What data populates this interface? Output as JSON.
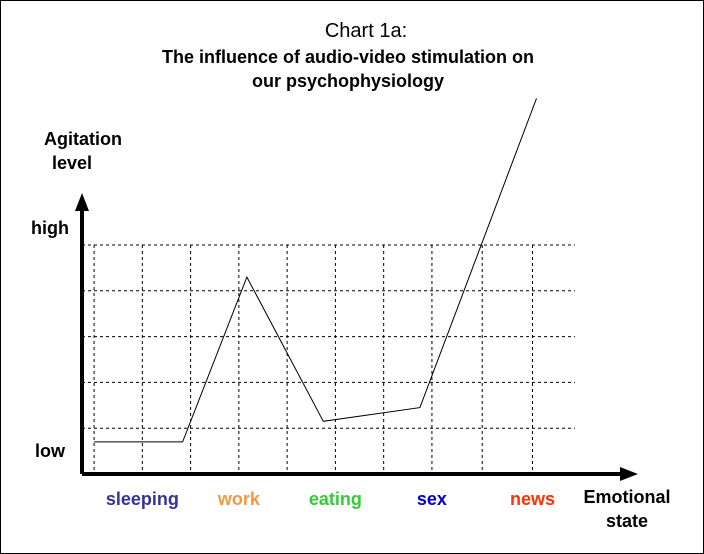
{
  "chart_data": {
    "type": "line",
    "title": "Chart 1a:",
    "subtitle_lines": [
      "The influence of audio-video stimulation on",
      "our psychophysiology"
    ],
    "ylabel_lines": [
      "Agitation",
      "level"
    ],
    "xlabel_lines": [
      "Emotional",
      "state"
    ],
    "y_tick_labels": {
      "high": "high",
      "low": "low"
    },
    "ylim": [
      0,
      5
    ],
    "x_range": [
      0,
      6.75
    ],
    "grid": true,
    "categories": [
      {
        "label": "sleeping",
        "x": 0.75,
        "color": "#333399"
      },
      {
        "label": "work",
        "x": 1.95,
        "color": "#F79646"
      },
      {
        "label": "eating",
        "x": 3.15,
        "color": "#33CC33"
      },
      {
        "label": "sex",
        "x": 4.35,
        "color": "#0000CC"
      },
      {
        "label": "news",
        "x": 5.6,
        "color": "#FF3300"
      }
    ],
    "series": [
      {
        "x": [
          0.15,
          1.25,
          2.05,
          3.0,
          4.2,
          5.65
        ],
        "values": [
          0.7,
          0.7,
          4.3,
          1.15,
          1.45,
          8.2
        ]
      }
    ],
    "colors": {
      "line": "#000000",
      "grid": "#000000",
      "axis": "#000000"
    }
  }
}
